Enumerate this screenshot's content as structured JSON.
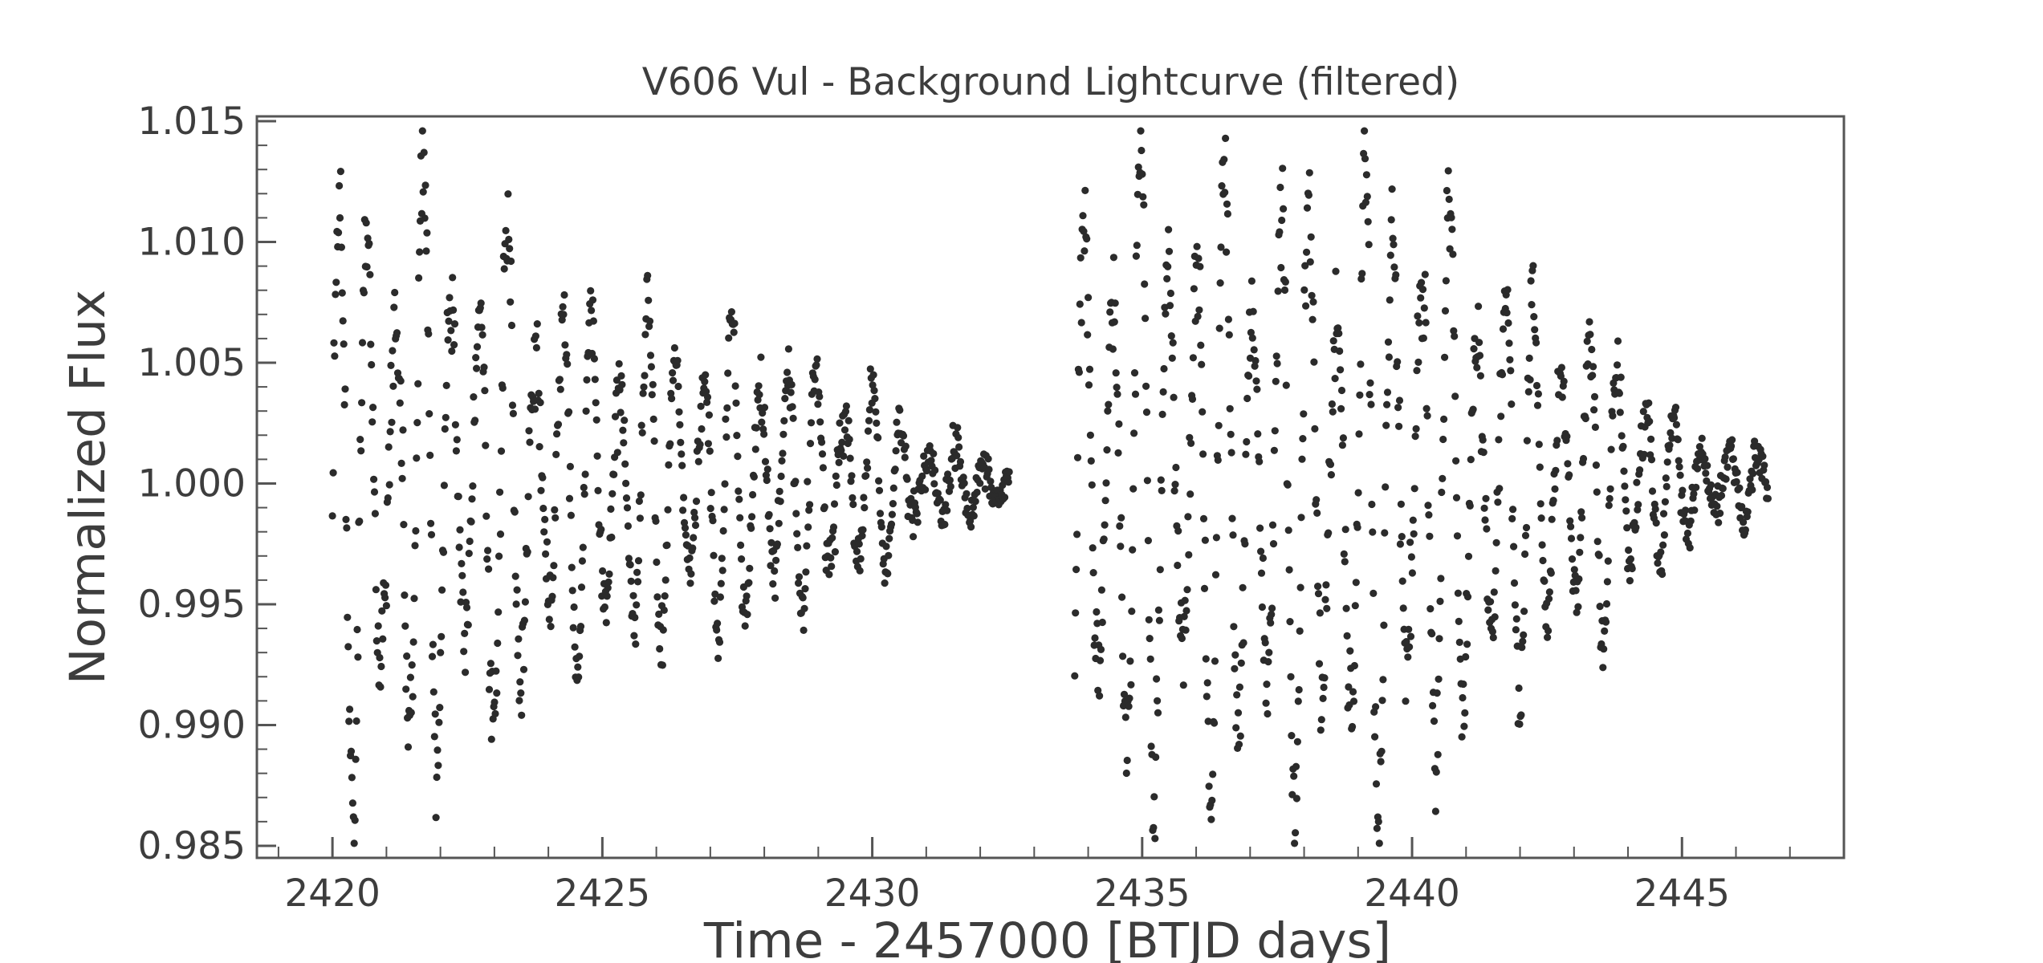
{
  "chart_data": {
    "type": "scatter",
    "title": "V606 Vul - Background Lightcurve (filtered)",
    "xlabel": "Time - 2457000 [BTJD days]",
    "ylabel": "Normalized Flux",
    "xlim": [
      2418.6,
      2448.0
    ],
    "ylim": [
      0.9845,
      1.0152
    ],
    "xticks": [
      2420,
      2425,
      2430,
      2435,
      2440,
      2445
    ],
    "xtick_labels": [
      "2420",
      "2425",
      "2430",
      "2435",
      "2440",
      "2445"
    ],
    "yticks": [
      0.985,
      0.99,
      0.995,
      1.0,
      1.005,
      1.01,
      1.015
    ],
    "ytick_labels": [
      "0.985",
      "0.990",
      "0.995",
      "1.000",
      "1.005",
      "1.010",
      "1.015"
    ],
    "grid": false,
    "legend": "none",
    "marker_color": "#2b2b2b",
    "series": [
      {
        "segments": [
          {
            "x_range": [
              2420.0,
              2432.55
            ],
            "center": 1.0,
            "envelope": [
              [
                2420.0,
                0.0135
              ],
              [
                2422.0,
                0.013
              ],
              [
                2424.0,
                0.009
              ],
              [
                2426.0,
                0.0075
              ],
              [
                2428.0,
                0.0065
              ],
              [
                2430.0,
                0.0045
              ],
              [
                2431.0,
                0.0018
              ],
              [
                2432.55,
                0.0012
              ]
            ],
            "cycle_days": 0.52
          },
          {
            "x_range": [
              2433.75,
              2446.6
            ],
            "center": 1.0,
            "envelope": [
              [
                2433.75,
                0.0138
              ],
              [
                2436.0,
                0.0138
              ],
              [
                2438.0,
                0.0135
              ],
              [
                2440.0,
                0.014
              ],
              [
                2442.0,
                0.0095
              ],
              [
                2444.0,
                0.006
              ],
              [
                2445.0,
                0.0025
              ],
              [
                2446.6,
                0.0012
              ]
            ],
            "cycle_days": 0.52
          }
        ]
      }
    ]
  }
}
